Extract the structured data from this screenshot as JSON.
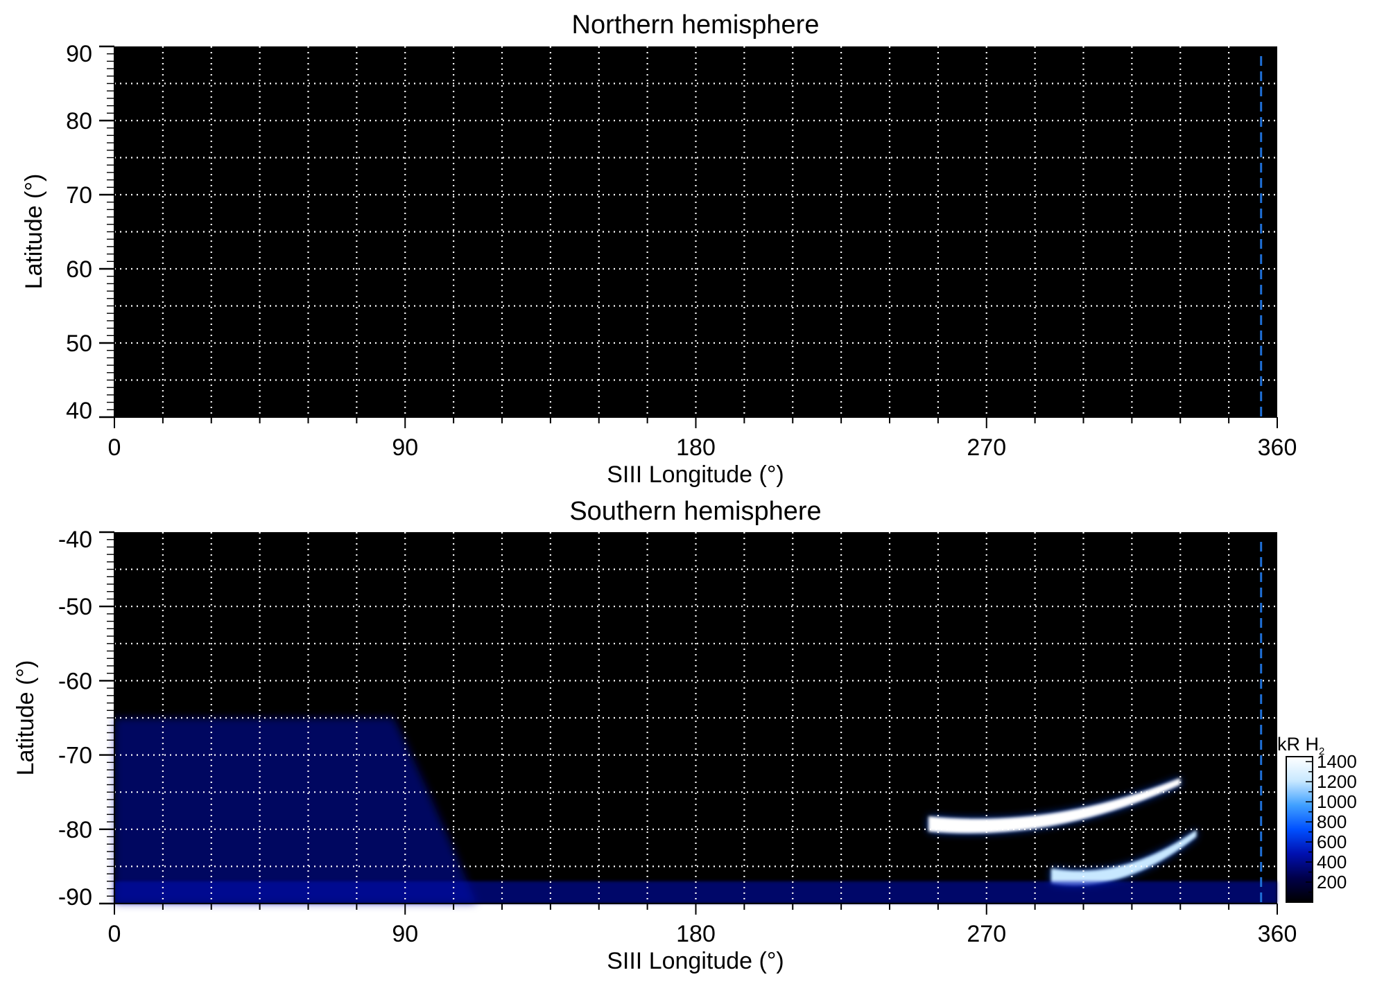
{
  "chart_data": [
    {
      "type": "heatmap",
      "title": "Northern hemisphere",
      "xlabel": "SIII Longitude (°)",
      "ylabel": "Latitude (°)",
      "xlim": [
        0,
        360
      ],
      "ylim": [
        40,
        90
      ],
      "xticks": [
        "0",
        "90",
        "180",
        "270",
        "360"
      ],
      "yticks": [
        "40",
        "50",
        "60",
        "70",
        "80",
        "90"
      ],
      "grid": true,
      "marker_longitude": 355,
      "emission": []
    },
    {
      "type": "heatmap",
      "title": "Southern hemisphere",
      "xlabel": "SIII Longitude (°)",
      "ylabel": "Latitude (°)",
      "xlim": [
        0,
        360
      ],
      "ylim": [
        -90,
        -40
      ],
      "xticks": [
        "0",
        "90",
        "180",
        "270",
        "360"
      ],
      "yticks": [
        "-40",
        "-50",
        "-60",
        "-70",
        "-80",
        "-90"
      ],
      "grid": true,
      "marker_longitude": 355,
      "emission": [
        {
          "region": "main oval bright arc",
          "lon": [
            252,
            330
          ],
          "lat": [
            -79,
            -74
          ],
          "peak_kR": 1400
        },
        {
          "region": "secondary arc",
          "lon": [
            290,
            335
          ],
          "lat": [
            -86,
            -81
          ],
          "peak_kR": 1100
        },
        {
          "region": "diffuse western emission",
          "lon": [
            0,
            95
          ],
          "lat": [
            -90,
            -65
          ],
          "peak_kR": 500
        },
        {
          "region": "polar limb band",
          "lon": [
            0,
            360
          ],
          "lat": [
            -90,
            -87
          ],
          "peak_kR": 400
        }
      ],
      "colorbar": {
        "label": "kR H",
        "label_subscript": "2",
        "ticks": [
          "200",
          "400",
          "600",
          "800",
          "1000",
          "1200",
          "1400"
        ],
        "range": [
          0,
          1450
        ],
        "colors": [
          "#000000",
          "#00004a",
          "#0010b0",
          "#0050ff",
          "#40a0ff",
          "#c8e8ff",
          "#ffffff"
        ]
      }
    }
  ],
  "colors": {
    "background": "#000000",
    "grid": "#ffffff",
    "marker": "#1f6fd6"
  }
}
